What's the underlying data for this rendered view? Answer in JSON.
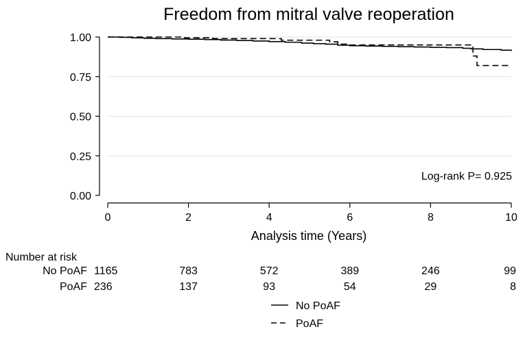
{
  "chart_data": {
    "type": "line",
    "title": "Freedom from mitral valve reoperation",
    "xlabel": "Analysis time (Years)",
    "ylabel": "",
    "xlim": [
      0,
      10
    ],
    "ylim": [
      0,
      1
    ],
    "x_ticks": [
      0,
      2,
      4,
      6,
      8,
      10
    ],
    "y_ticks": [
      "0.00",
      "0.25",
      "0.50",
      "0.75",
      "1.00"
    ],
    "grid": true,
    "annotation": "Log-rank P= 0.925",
    "series": [
      {
        "name": "No PoAF",
        "line_style": "solid",
        "steps": [
          [
            0,
            1.0
          ],
          [
            0.3,
            0.998
          ],
          [
            0.6,
            0.995
          ],
          [
            0.9,
            0.992
          ],
          [
            1.2,
            0.99
          ],
          [
            1.6,
            0.988
          ],
          [
            2.0,
            0.986
          ],
          [
            2.4,
            0.984
          ],
          [
            2.8,
            0.981
          ],
          [
            3.2,
            0.978
          ],
          [
            3.6,
            0.975
          ],
          [
            4.0,
            0.971
          ],
          [
            4.4,
            0.967
          ],
          [
            4.8,
            0.962
          ],
          [
            5.1,
            0.958
          ],
          [
            5.4,
            0.955
          ],
          [
            5.7,
            0.948
          ],
          [
            6.0,
            0.945
          ],
          [
            6.4,
            0.943
          ],
          [
            6.8,
            0.941
          ],
          [
            7.2,
            0.939
          ],
          [
            7.6,
            0.937
          ],
          [
            8.0,
            0.935
          ],
          [
            8.4,
            0.933
          ],
          [
            8.8,
            0.929
          ],
          [
            9.0,
            0.925
          ],
          [
            9.3,
            0.921
          ],
          [
            9.75,
            0.917
          ],
          [
            10.0,
            0.912
          ]
        ]
      },
      {
        "name": "PoAF",
        "line_style": "dashed",
        "steps": [
          [
            0,
            1.0
          ],
          [
            1.9,
            0.995
          ],
          [
            2.6,
            0.99
          ],
          [
            4.3,
            0.98
          ],
          [
            5.5,
            0.97
          ],
          [
            5.7,
            0.955
          ],
          [
            6.0,
            0.95
          ],
          [
            9.05,
            0.88
          ],
          [
            9.15,
            0.82
          ],
          [
            10.0,
            0.82
          ]
        ]
      }
    ],
    "risk_table": {
      "header": "Number at risk",
      "times": [
        0,
        2,
        4,
        6,
        8,
        10
      ],
      "rows": [
        {
          "label": "No PoAF",
          "values": [
            "1165",
            "783",
            "572",
            "389",
            "246",
            "99"
          ]
        },
        {
          "label": "PoAF",
          "values": [
            "236",
            "137",
            "93",
            "54",
            "29",
            "8"
          ]
        }
      ]
    },
    "legend": {
      "placement": "bottom",
      "entries": [
        "No PoAF",
        "PoAF"
      ]
    }
  }
}
